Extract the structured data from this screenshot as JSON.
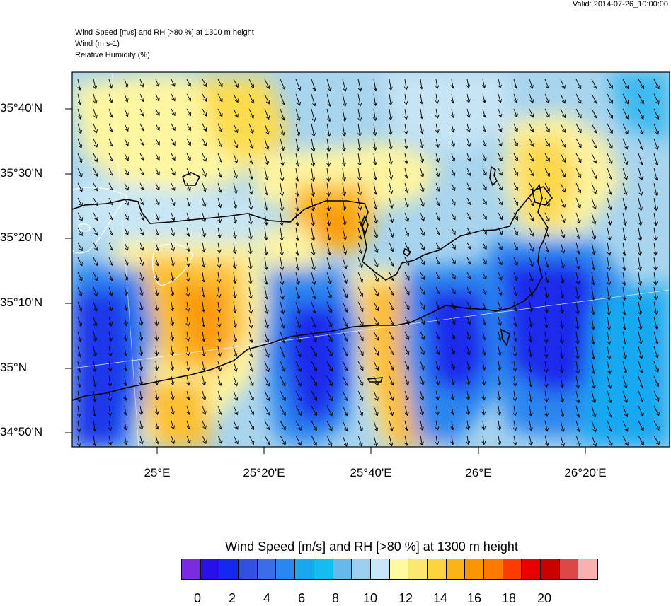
{
  "header": {
    "valid": "Valid: 2014-07-26_10:00:00",
    "title_lines": [
      "Wind Speed [m/s] and RH [>80 %] at 1300 m height",
      "Wind   (m s-1)",
      "Relative Humidity   (%)"
    ]
  },
  "map": {
    "lat_labels": [
      "35°40'N",
      "35°30'N",
      "35°20'N",
      "35°10'N",
      "35°N",
      "34°50'N"
    ],
    "lon_labels": [
      "25°E",
      "25°20'E",
      "25°40'E",
      "26°E",
      "26°20'E"
    ],
    "wind_arrows": "dense south-southeast pointing vectors",
    "coastline_color": "#000000",
    "rh_contour_color": "#ffffff"
  },
  "colorbar": {
    "title": "Wind Speed [m/s] and RH [>80 %] at 1300 m height",
    "labels": [
      "0",
      "2",
      "4",
      "6",
      "8",
      "10",
      "12",
      "14",
      "16",
      "18",
      "20"
    ],
    "colors": [
      "#7a2be0",
      "#2a10e8",
      "#1428f0",
      "#3050e0",
      "#3a6ee8",
      "#2a86f0",
      "#18a8f0",
      "#14bcf0",
      "#64b8ea",
      "#98d0ee",
      "#c8e6f4",
      "#fef8a0",
      "#fce870",
      "#fcd43c",
      "#fcb414",
      "#fc9600",
      "#fc7a00",
      "#fc3c00",
      "#e80000",
      "#c80000",
      "#dc4848",
      "#f8b0b0"
    ]
  }
}
